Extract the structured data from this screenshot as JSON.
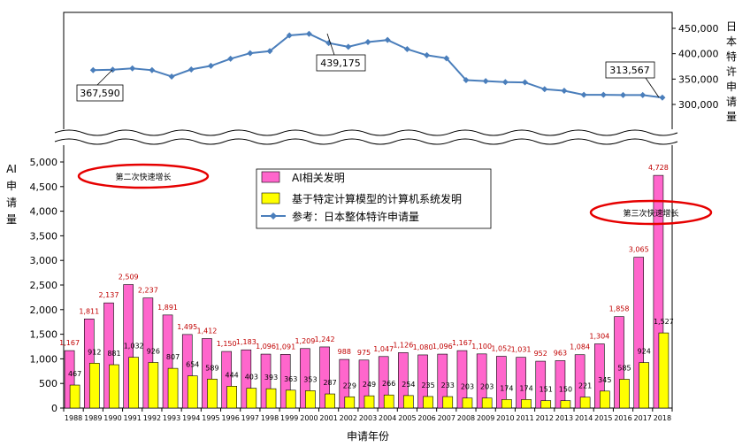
{
  "chart_data": {
    "type": "bar",
    "xlabel": "申请年份",
    "ylabel_left": "AI申请量",
    "ylabel_right": "日本特许申请量",
    "categories": [
      "1988",
      "1989",
      "1990",
      "1991",
      "1992",
      "1993",
      "1994",
      "1995",
      "1996",
      "1997",
      "1998",
      "1999",
      "2000",
      "2001",
      "2002",
      "2003",
      "2004",
      "2005",
      "2006",
      "2007",
      "2008",
      "2009",
      "2010",
      "2011",
      "2012",
      "2013",
      "2014",
      "2015",
      "2016",
      "2017",
      "2018"
    ],
    "series": [
      {
        "name": "AI相关发明",
        "type": "bar",
        "color": "#ff66cc",
        "values": [
          1167,
          1811,
          2137,
          2509,
          2237,
          1891,
          1495,
          1412,
          1150,
          1183,
          1096,
          1091,
          1209,
          1242,
          988,
          975,
          1047,
          1126,
          1080,
          1096,
          1167,
          1100,
          1052,
          1031,
          952,
          963,
          1084,
          1304,
          1858,
          3065,
          4728
        ],
        "labels": [
          "1,167",
          "1,811",
          "2,137",
          "2,509",
          "2,237",
          "1,891",
          "1,495",
          "1,412",
          "1,150",
          "1,183",
          "1,096",
          "1,091",
          "1,209",
          "1,242",
          "988",
          "975",
          "1,047",
          "1,126",
          "1,080",
          "1,096",
          "1,167",
          "1,100",
          "1,052",
          "1,031",
          "952",
          "963",
          "1,084",
          "1,304",
          "1,858",
          "3,065",
          "4,728"
        ]
      },
      {
        "name": "基于特定计算模型的计算机系统发明",
        "type": "bar",
        "color": "#ffff00",
        "values": [
          467,
          912,
          881,
          1032,
          926,
          807,
          654,
          589,
          444,
          403,
          393,
          363,
          353,
          287,
          229,
          249,
          266,
          254,
          235,
          233,
          203,
          203,
          174,
          174,
          151,
          150,
          221,
          345,
          585,
          924,
          1527
        ],
        "labels": [
          "467",
          "912",
          "881",
          "1,032",
          "926",
          "807",
          "654",
          "589",
          "444",
          "403",
          "393",
          "363",
          "353",
          "287",
          "229",
          "249",
          "266",
          "254",
          "235",
          "233",
          "203",
          "203",
          "174",
          "174",
          "151",
          "150",
          "221",
          "345",
          "585",
          "924",
          "1,527"
        ]
      },
      {
        "name": "参考：日本整体特许申请量",
        "type": "line",
        "color": "#4a7ebb",
        "values": [
          null,
          367590,
          368500,
          371000,
          367500,
          355000,
          369000,
          376000,
          390000,
          401000,
          405000,
          436000,
          439175,
          421000,
          413500,
          423000,
          427000,
          409000,
          397000,
          391000,
          348000,
          346000,
          344000,
          343500,
          330000,
          327000,
          319000,
          319000,
          318500,
          318500,
          313567
        ]
      }
    ],
    "left_axis": {
      "ticks": [
        "0",
        "500",
        "1,000",
        "1,500",
        "2,000",
        "2,500",
        "3,000",
        "3,500",
        "4,000",
        "4,500",
        "5,000"
      ],
      "ylim": [
        0,
        5000
      ]
    },
    "right_axis": {
      "ticks": [
        "300,000",
        "350,000",
        "400,000",
        "450,000"
      ],
      "ylim": [
        280000,
        450000
      ]
    },
    "callouts": [
      "367,590",
      "439,175",
      "313,567"
    ],
    "phases": [
      "第二次快速增长",
      "第三次快速增长"
    ],
    "legend_position": "top-center"
  }
}
